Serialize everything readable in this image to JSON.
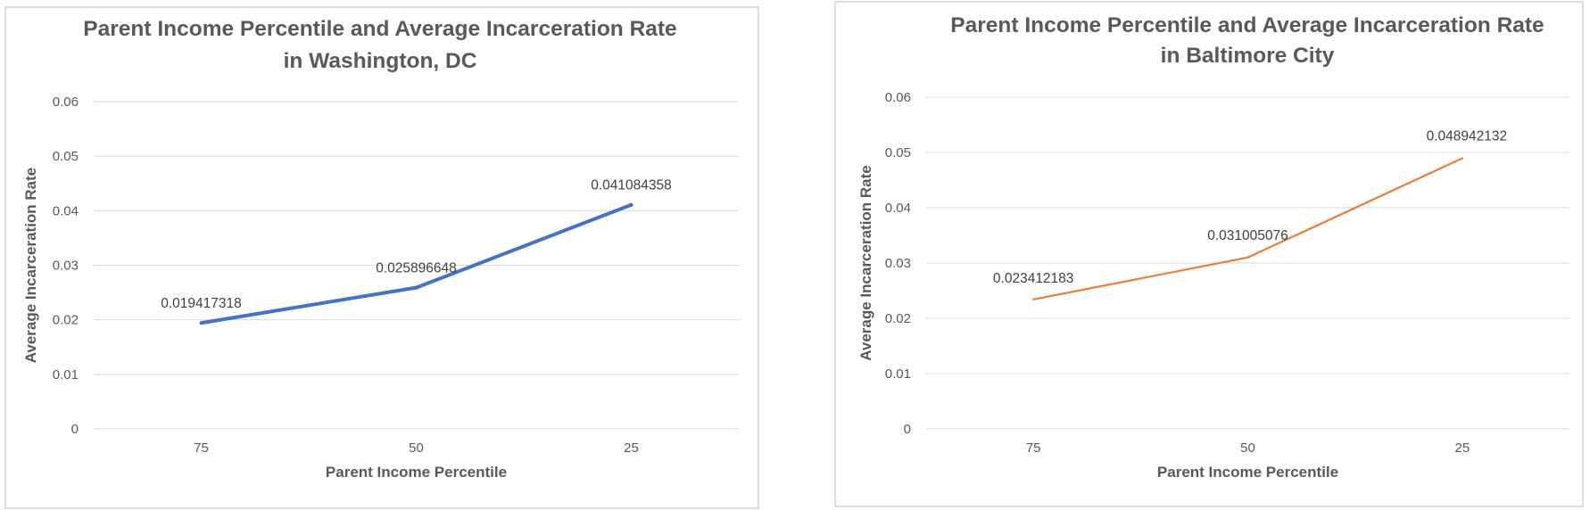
{
  "chart_data": [
    {
      "type": "line",
      "title": [
        "Parent Income Percentile and Average Incarceration Rate",
        "in Washington, DC"
      ],
      "xlabel": "Parent Income Percentile",
      "ylabel": "Average Incarceration Rate",
      "categories": [
        "75",
        "50",
        "25"
      ],
      "ylim": [
        0,
        0.06
      ],
      "yticks": [
        0,
        0.01,
        0.02,
        0.03,
        0.04,
        0.05,
        0.06
      ],
      "ytick_labels": [
        "0",
        "0.01",
        "0.02",
        "0.03",
        "0.04",
        "0.05",
        "0.06"
      ],
      "grid": true,
      "legend": "none",
      "series": [
        {
          "values": [
            0.019417318,
            0.025896648,
            0.041084358
          ],
          "data_labels": [
            "0.019417318",
            "0.025896648",
            "0.041084358"
          ],
          "color": "#4472C4"
        }
      ]
    },
    {
      "type": "line",
      "title": [
        "Parent Income Percentile and Average Incarceration Rate",
        "in Baltimore City"
      ],
      "xlabel": "Parent Income Percentile",
      "ylabel": "Average Incarceration Rate",
      "categories": [
        "75",
        "50",
        "25"
      ],
      "ylim": [
        0,
        0.06
      ],
      "yticks": [
        0,
        0.01,
        0.02,
        0.03,
        0.04,
        0.05,
        0.06
      ],
      "ytick_labels": [
        "0",
        "0.01",
        "0.02",
        "0.03",
        "0.04",
        "0.05",
        "0.06"
      ],
      "grid": true,
      "legend": "none",
      "series": [
        {
          "values": [
            0.023412183,
            0.031005076,
            0.048942132
          ],
          "data_labels": [
            "0.023412183",
            "0.031005076",
            "0.048942132"
          ],
          "color": "#ED7D31"
        }
      ]
    }
  ]
}
